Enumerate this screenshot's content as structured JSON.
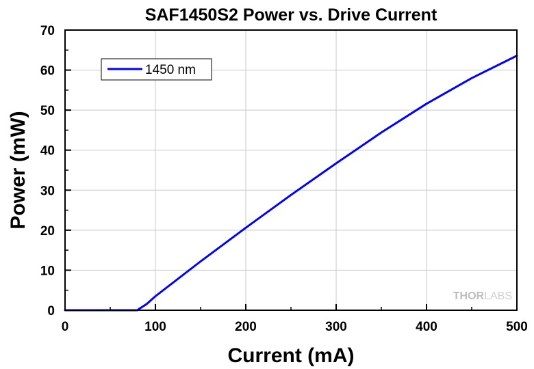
{
  "chart_data": {
    "type": "line",
    "title": "SAF1450S2 Power vs. Drive Current",
    "xlabel": "Current (mA)",
    "ylabel": "Power (mW)",
    "xlim": [
      0,
      500
    ],
    "ylim": [
      0,
      70
    ],
    "xticks": [
      0,
      100,
      200,
      300,
      400,
      500
    ],
    "yticks": [
      0,
      10,
      20,
      30,
      40,
      50,
      60,
      70
    ],
    "grid": true,
    "legend_position": "top-left",
    "series": [
      {
        "name": "1450 nm",
        "color": "#0000ff",
        "x": [
          0,
          50,
          80,
          83,
          90,
          100,
          150,
          200,
          250,
          300,
          350,
          400,
          450,
          500
        ],
        "y": [
          0,
          0,
          0,
          0.5,
          1.5,
          3.5,
          12.2,
          20.6,
          28.8,
          36.7,
          44.4,
          51.6,
          58.0,
          63.6
        ]
      }
    ]
  },
  "watermark": {
    "bold_text": "THOR",
    "light_text": "LABS"
  }
}
